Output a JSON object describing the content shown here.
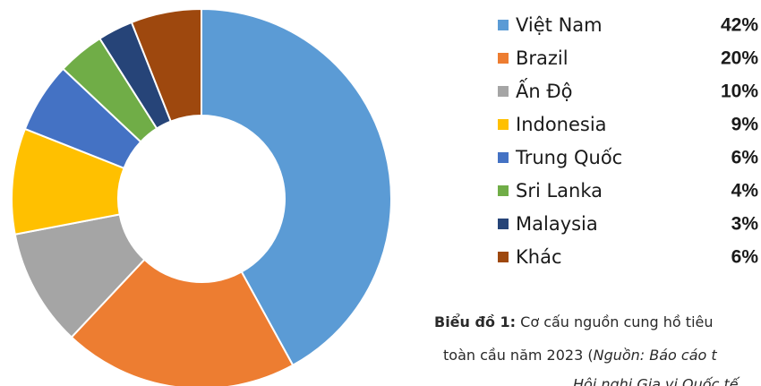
{
  "chart_data": {
    "type": "donut",
    "categories": [
      "Việt Nam",
      "Brazil",
      "Ấn Độ",
      "Indonesia",
      "Trung Quốc",
      "Sri Lanka",
      "Malaysia",
      "Khác"
    ],
    "values": [
      42,
      20,
      10,
      9,
      6,
      4,
      3,
      6
    ],
    "value_labels": [
      "42%",
      "20%",
      "10%",
      "9%",
      "6%",
      "4%",
      "3%",
      "6%"
    ],
    "colors": [
      "#5b9bd5",
      "#ed7d31",
      "#a5a5a5",
      "#ffc000",
      "#4472c4",
      "#70ad47",
      "#264478",
      "#9e480e"
    ],
    "legend": "right"
  },
  "caption": {
    "label": "Biểu đồ 1:",
    "line1": "Cơ cấu nguồn cung hồ tiêu",
    "line2": "toàn cầu năm 2023 (",
    "line2_italic": "Nguồn: Báo cáo t",
    "line3_italic": "Hội nghị Gia vị Quốc tế"
  }
}
